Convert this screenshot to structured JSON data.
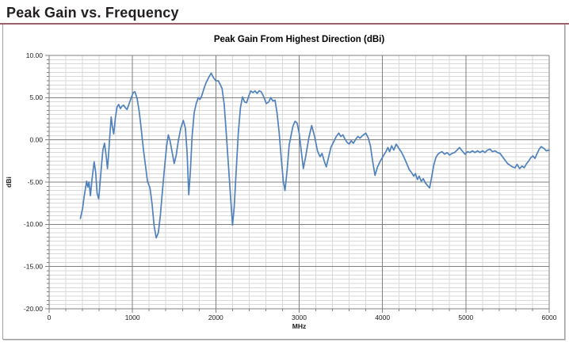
{
  "page": {
    "heading": "Peak Gain vs. Frequency"
  },
  "chart": {
    "title": "Peak Gain From Highest Direction (dBi)"
  },
  "colors": {
    "heading_text": "#231f20",
    "heading_rule": "#9d6069",
    "box_border": "#a0a0a0",
    "series_line": "#4f81bd",
    "grid_minor": "#d9d9d9",
    "grid_major": "#7f7f7f",
    "axis_text": "#1a1a1a"
  },
  "chart_data": {
    "type": "line",
    "title": "Peak Gain From Highest Direction (dBi)",
    "xlabel": "MHz",
    "ylabel": "dBi",
    "xlim": [
      0,
      6000
    ],
    "ylim": [
      -20,
      10
    ],
    "x_major_ticks": [
      0,
      1000,
      2000,
      3000,
      4000,
      5000,
      6000
    ],
    "x_tick_labels": [
      "0",
      "1000",
      "2000",
      "3000",
      "4000",
      "5000",
      "6000"
    ],
    "x_minor_step": 200,
    "y_major_ticks": [
      10,
      5,
      0,
      -5,
      -10,
      -15,
      -20
    ],
    "y_tick_labels": [
      "10.00",
      "5.00",
      "0.00",
      "-5.00",
      "-10.00",
      "-15.00",
      "-20.00"
    ],
    "y_minor_step": 0.5,
    "grid": true,
    "legend": false,
    "series": [
      {
        "name": "Peak Gain From Highest Direction",
        "points": [
          [
            375,
            -9.3
          ],
          [
            400,
            -8.2
          ],
          [
            420,
            -6.7
          ],
          [
            450,
            -4.9
          ],
          [
            465,
            -5.6
          ],
          [
            478,
            -5.0
          ],
          [
            495,
            -6.6
          ],
          [
            515,
            -4.6
          ],
          [
            540,
            -2.6
          ],
          [
            558,
            -3.8
          ],
          [
            575,
            -6.3
          ],
          [
            595,
            -7.0
          ],
          [
            620,
            -4.0
          ],
          [
            645,
            -1.2
          ],
          [
            665,
            -0.4
          ],
          [
            685,
            -1.9
          ],
          [
            700,
            -3.4
          ],
          [
            715,
            -1.5
          ],
          [
            730,
            0.8
          ],
          [
            745,
            2.7
          ],
          [
            760,
            1.5
          ],
          [
            775,
            0.7
          ],
          [
            795,
            2.6
          ],
          [
            815,
            3.9
          ],
          [
            835,
            4.2
          ],
          [
            855,
            3.7
          ],
          [
            875,
            4.0
          ],
          [
            895,
            4.1
          ],
          [
            915,
            3.8
          ],
          [
            935,
            3.6
          ],
          [
            960,
            4.3
          ],
          [
            985,
            5.0
          ],
          [
            1010,
            5.6
          ],
          [
            1030,
            5.7
          ],
          [
            1055,
            4.9
          ],
          [
            1080,
            3.4
          ],
          [
            1105,
            1.3
          ],
          [
            1130,
            -1.0
          ],
          [
            1155,
            -3.0
          ],
          [
            1180,
            -4.9
          ],
          [
            1195,
            -5.3
          ],
          [
            1210,
            -5.7
          ],
          [
            1235,
            -7.6
          ],
          [
            1260,
            -10.2
          ],
          [
            1285,
            -11.6
          ],
          [
            1310,
            -11.0
          ],
          [
            1335,
            -8.9
          ],
          [
            1360,
            -6.0
          ],
          [
            1385,
            -3.2
          ],
          [
            1410,
            -0.7
          ],
          [
            1430,
            0.6
          ],
          [
            1450,
            -0.1
          ],
          [
            1475,
            -1.4
          ],
          [
            1500,
            -2.8
          ],
          [
            1525,
            -1.8
          ],
          [
            1550,
            -0.1
          ],
          [
            1580,
            1.4
          ],
          [
            1610,
            2.3
          ],
          [
            1635,
            1.4
          ],
          [
            1655,
            -1.5
          ],
          [
            1675,
            -6.5
          ],
          [
            1695,
            -3.6
          ],
          [
            1715,
            0.4
          ],
          [
            1740,
            3.2
          ],
          [
            1765,
            4.3
          ],
          [
            1790,
            5.0
          ],
          [
            1810,
            4.8
          ],
          [
            1830,
            5.2
          ],
          [
            1855,
            6.0
          ],
          [
            1885,
            6.8
          ],
          [
            1915,
            7.4
          ],
          [
            1945,
            7.9
          ],
          [
            1970,
            7.4
          ],
          [
            2000,
            7.0
          ],
          [
            2030,
            7.0
          ],
          [
            2055,
            6.5
          ],
          [
            2075,
            6.1
          ],
          [
            2100,
            4.2
          ],
          [
            2125,
            0.8
          ],
          [
            2150,
            -2.8
          ],
          [
            2175,
            -6.4
          ],
          [
            2200,
            -10.1
          ],
          [
            2220,
            -8.0
          ],
          [
            2245,
            -3.6
          ],
          [
            2270,
            0.8
          ],
          [
            2295,
            3.8
          ],
          [
            2320,
            5.1
          ],
          [
            2345,
            4.5
          ],
          [
            2370,
            4.4
          ],
          [
            2395,
            5.2
          ],
          [
            2420,
            5.8
          ],
          [
            2445,
            5.6
          ],
          [
            2470,
            5.8
          ],
          [
            2495,
            5.5
          ],
          [
            2520,
            5.8
          ],
          [
            2545,
            5.7
          ],
          [
            2575,
            5.1
          ],
          [
            2605,
            4.3
          ],
          [
            2635,
            4.5
          ],
          [
            2660,
            5.0
          ],
          [
            2685,
            4.6
          ],
          [
            2710,
            4.7
          ],
          [
            2735,
            3.2
          ],
          [
            2760,
            0.8
          ],
          [
            2785,
            -2.2
          ],
          [
            2810,
            -4.9
          ],
          [
            2830,
            -6.0
          ],
          [
            2855,
            -3.6
          ],
          [
            2880,
            -0.6
          ],
          [
            2900,
            0.4
          ],
          [
            2925,
            1.6
          ],
          [
            2950,
            2.2
          ],
          [
            2975,
            2.0
          ],
          [
            3000,
            0.8
          ],
          [
            3025,
            -1.3
          ],
          [
            3050,
            -3.4
          ],
          [
            3080,
            -1.9
          ],
          [
            3115,
            0.2
          ],
          [
            3150,
            1.7
          ],
          [
            3185,
            0.4
          ],
          [
            3220,
            -1.3
          ],
          [
            3250,
            -2.0
          ],
          [
            3275,
            -1.6
          ],
          [
            3300,
            -2.5
          ],
          [
            3325,
            -3.2
          ],
          [
            3355,
            -2.0
          ],
          [
            3380,
            -0.9
          ],
          [
            3410,
            -0.3
          ],
          [
            3445,
            0.4
          ],
          [
            3475,
            0.8
          ],
          [
            3500,
            0.4
          ],
          [
            3525,
            0.6
          ],
          [
            3550,
            0.1
          ],
          [
            3575,
            -0.3
          ],
          [
            3600,
            -0.5
          ],
          [
            3625,
            -0.1
          ],
          [
            3650,
            -0.4
          ],
          [
            3680,
            0.1
          ],
          [
            3705,
            0.4
          ],
          [
            3730,
            0.2
          ],
          [
            3760,
            0.5
          ],
          [
            3800,
            0.8
          ],
          [
            3830,
            0.2
          ],
          [
            3855,
            -0.7
          ],
          [
            3880,
            -2.4
          ],
          [
            3910,
            -4.2
          ],
          [
            3940,
            -3.2
          ],
          [
            3975,
            -2.5
          ],
          [
            4010,
            -1.9
          ],
          [
            4040,
            -1.4
          ],
          [
            4065,
            -0.9
          ],
          [
            4085,
            -1.4
          ],
          [
            4110,
            -0.7
          ],
          [
            4135,
            -1.2
          ],
          [
            4165,
            -0.5
          ],
          [
            4195,
            -1.0
          ],
          [
            4225,
            -1.4
          ],
          [
            4255,
            -2.0
          ],
          [
            4290,
            -2.8
          ],
          [
            4320,
            -3.5
          ],
          [
            4350,
            -3.9
          ],
          [
            4375,
            -4.3
          ],
          [
            4395,
            -4.0
          ],
          [
            4420,
            -4.7
          ],
          [
            4440,
            -4.3
          ],
          [
            4465,
            -4.9
          ],
          [
            4490,
            -4.6
          ],
          [
            4515,
            -5.1
          ],
          [
            4540,
            -5.4
          ],
          [
            4565,
            -5.7
          ],
          [
            4590,
            -4.4
          ],
          [
            4615,
            -3.0
          ],
          [
            4640,
            -2.1
          ],
          [
            4665,
            -1.7
          ],
          [
            4690,
            -1.5
          ],
          [
            4715,
            -1.4
          ],
          [
            4745,
            -1.7
          ],
          [
            4775,
            -1.5
          ],
          [
            4805,
            -1.8
          ],
          [
            4835,
            -1.6
          ],
          [
            4865,
            -1.5
          ],
          [
            4895,
            -1.2
          ],
          [
            4925,
            -0.9
          ],
          [
            4955,
            -1.3
          ],
          [
            4990,
            -1.7
          ],
          [
            5020,
            -1.4
          ],
          [
            5050,
            -1.5
          ],
          [
            5080,
            -1.3
          ],
          [
            5110,
            -1.5
          ],
          [
            5140,
            -1.3
          ],
          [
            5170,
            -1.5
          ],
          [
            5200,
            -1.3
          ],
          [
            5230,
            -1.5
          ],
          [
            5260,
            -1.2
          ],
          [
            5290,
            -1.1
          ],
          [
            5320,
            -1.4
          ],
          [
            5350,
            -1.3
          ],
          [
            5380,
            -1.5
          ],
          [
            5410,
            -1.6
          ],
          [
            5440,
            -2.0
          ],
          [
            5470,
            -2.4
          ],
          [
            5500,
            -2.8
          ],
          [
            5530,
            -3.0
          ],
          [
            5560,
            -3.2
          ],
          [
            5590,
            -3.3
          ],
          [
            5615,
            -2.9
          ],
          [
            5645,
            -3.4
          ],
          [
            5675,
            -3.1
          ],
          [
            5700,
            -3.3
          ],
          [
            5730,
            -2.8
          ],
          [
            5755,
            -2.5
          ],
          [
            5780,
            -2.1
          ],
          [
            5805,
            -1.9
          ],
          [
            5830,
            -2.2
          ],
          [
            5855,
            -1.6
          ],
          [
            5880,
            -1.1
          ],
          [
            5905,
            -0.8
          ],
          [
            5935,
            -1.0
          ],
          [
            5965,
            -1.3
          ],
          [
            6000,
            -1.2
          ]
        ]
      }
    ]
  }
}
